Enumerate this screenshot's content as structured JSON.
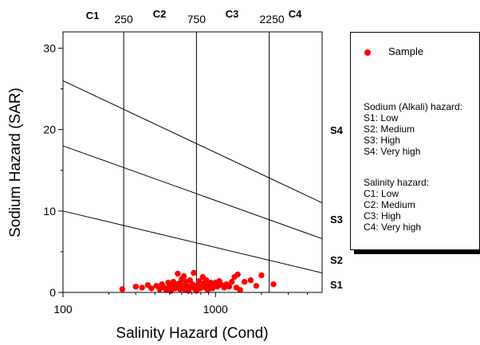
{
  "chart_data": {
    "type": "scatter",
    "xlabel": "Salinity Hazard (Cond)",
    "ylabel": "Sodium Hazard (SAR)",
    "x_scale": "log",
    "xlim": [
      100,
      5000
    ],
    "ylim": [
      0,
      32
    ],
    "x_ticks": [
      100,
      1000
    ],
    "y_ticks": [
      0,
      10,
      20,
      30
    ],
    "grid": false,
    "class_boundaries": {
      "values": [
        250,
        750,
        2250
      ],
      "labels": [
        "250",
        "750",
        "2250"
      ]
    },
    "salinity_classes": [
      "C1",
      "C2",
      "C3",
      "C4"
    ],
    "sodium_classes": [
      "S1",
      "S2",
      "S3",
      "S4"
    ],
    "sodium_boundary_lines": [
      {
        "at_100": 10,
        "at_5000": 2.4
      },
      {
        "at_100": 18,
        "at_5000": 6.6
      },
      {
        "at_100": 26,
        "at_5000": 11
      }
    ],
    "series": [
      {
        "name": "Sample",
        "color": "#ff0000",
        "points": [
          [
            245,
            0.4
          ],
          [
            300,
            0.7
          ],
          [
            330,
            0.6
          ],
          [
            360,
            0.9
          ],
          [
            380,
            0.5
          ],
          [
            410,
            0.8
          ],
          [
            430,
            0.4
          ],
          [
            445,
            1.0
          ],
          [
            460,
            0.6
          ],
          [
            475,
            0.3
          ],
          [
            490,
            1.2
          ],
          [
            500,
            0.7
          ],
          [
            510,
            0.2
          ],
          [
            520,
            0.9
          ],
          [
            530,
            1.3
          ],
          [
            545,
            0.5
          ],
          [
            555,
            0.8
          ],
          [
            565,
            2.3
          ],
          [
            575,
            1.1
          ],
          [
            585,
            0.4
          ],
          [
            595,
            0.9
          ],
          [
            600,
            1.6
          ],
          [
            610,
            0.6
          ],
          [
            620,
            2.0
          ],
          [
            630,
            0.3
          ],
          [
            640,
            1.3
          ],
          [
            650,
            0.8
          ],
          [
            665,
            0.2
          ],
          [
            680,
            1.5
          ],
          [
            690,
            0.6
          ],
          [
            705,
            1.0
          ],
          [
            720,
            2.4
          ],
          [
            735,
            0.4
          ],
          [
            750,
            0.2
          ],
          [
            765,
            0.9
          ],
          [
            780,
            1.4
          ],
          [
            795,
            0.5
          ],
          [
            810,
            0.7
          ],
          [
            825,
            1.9
          ],
          [
            840,
            1.1
          ],
          [
            855,
            0.6
          ],
          [
            870,
            1.5
          ],
          [
            890,
            0.3
          ],
          [
            910,
            0.9
          ],
          [
            930,
            1.2
          ],
          [
            955,
            0.5
          ],
          [
            980,
            0.8
          ],
          [
            1000,
            1.2
          ],
          [
            1030,
            0.7
          ],
          [
            1060,
            1.4
          ],
          [
            1100,
            0.9
          ],
          [
            1140,
            0.6
          ],
          [
            1180,
            1.0
          ],
          [
            1230,
            0.7
          ],
          [
            1280,
            1.3
          ],
          [
            1330,
            1.9
          ],
          [
            1370,
            0.6
          ],
          [
            1400,
            2.2
          ],
          [
            1450,
            0.3
          ],
          [
            1550,
            1.3
          ],
          [
            1700,
            1.5
          ],
          [
            1850,
            0.8
          ],
          [
            2000,
            2.1
          ],
          [
            2400,
            1.0
          ]
        ]
      }
    ]
  },
  "legend": {
    "sample_label": "Sample",
    "sodium_title": "Sodium (Alkali) hazard:",
    "sodium_items": [
      "S1: Low",
      "S2: Medium",
      "S3: High",
      "S4: Very high"
    ],
    "salinity_title": "Salinity hazard:",
    "salinity_items": [
      "C1: Low",
      "C2: Medium",
      "C3: High",
      "C4: Very high"
    ]
  }
}
